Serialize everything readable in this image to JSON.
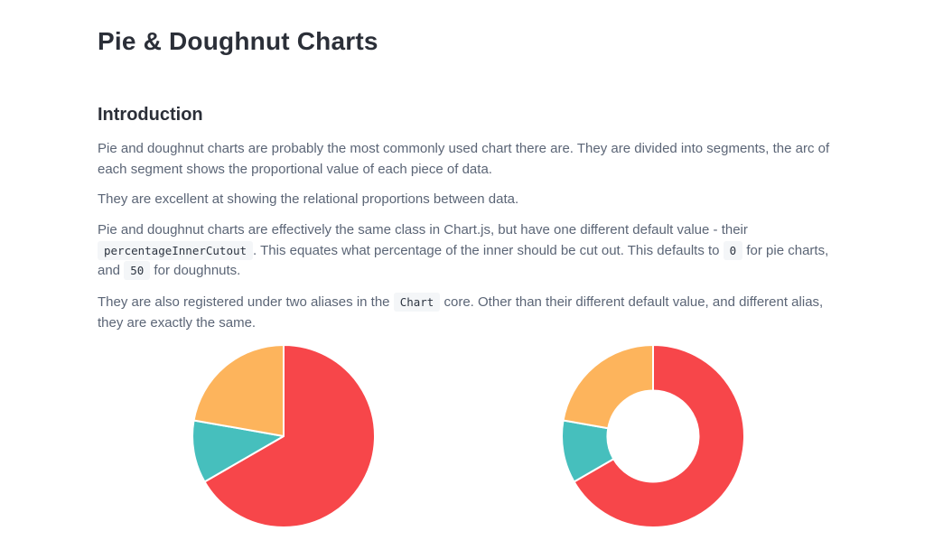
{
  "page": {
    "title": "Pie & Doughnut Charts",
    "section_heading": "Introduction",
    "paragraphs": {
      "p1": "Pie and doughnut charts are probably the most commonly used chart there are. They are divided into segments, the arc of each segment shows the proportional value of each piece of data.",
      "p2": "They are excellent at showing the relational proportions between data.",
      "p3": {
        "text_a": "Pie and doughnut charts are effectively the same class in Chart.js, but have one different default value - their ",
        "code_a": "percentageInnerCutout",
        "text_b": ". This equates what percentage of the inner should be cut out. This defaults to ",
        "code_b": "0",
        "text_c": " for pie charts, and ",
        "code_c": "50",
        "text_d": " for doughnuts."
      },
      "p4": {
        "text_a": "They are also registered under two aliases in the ",
        "code_a": "Chart",
        "text_b": " core. Other than their different default value, and different alias, they are exactly the same."
      }
    }
  },
  "chart_data": [
    {
      "type": "pie",
      "cutout_percent": 0,
      "segments": [
        {
          "value": 300,
          "color": "#F7464A"
        },
        {
          "value": 50,
          "color": "#46BFBD"
        },
        {
          "value": 100,
          "color": "#FDB45C"
        }
      ],
      "segment_stroke_color": "#ffffff"
    },
    {
      "type": "pie",
      "cutout_percent": 50,
      "segments": [
        {
          "value": 300,
          "color": "#F7464A"
        },
        {
          "value": 50,
          "color": "#46BFBD"
        },
        {
          "value": 100,
          "color": "#FDB45C"
        }
      ],
      "segment_stroke_color": "#ffffff"
    }
  ]
}
